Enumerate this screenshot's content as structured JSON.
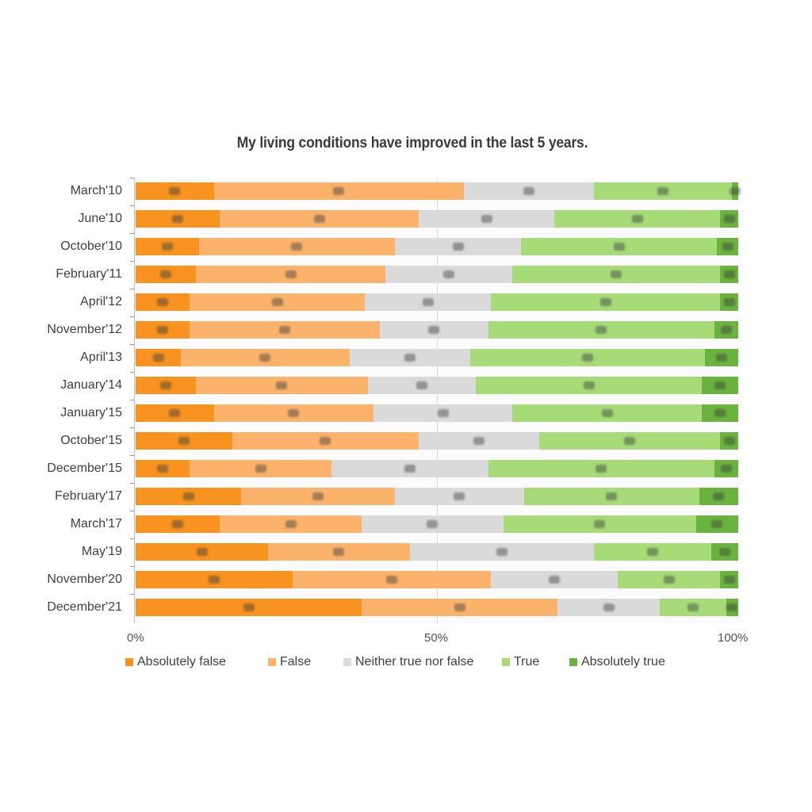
{
  "chart_data": {
    "type": "bar",
    "orientation": "horizontal",
    "stacked": "percent",
    "title": "My living conditions have improved in the last 5 years.",
    "xlabel": "",
    "ylabel": "",
    "xlim": [
      0,
      100
    ],
    "x_ticks": [
      "0%",
      "50%",
      "100%"
    ],
    "grid": "vertical gridline at 50%",
    "legend_position": "bottom",
    "categories": [
      "March'10",
      "June'10",
      "October'10",
      "February'11",
      "April'12",
      "November'12",
      "April'13",
      "January'14",
      "January'15",
      "October'15",
      "December'15",
      "February'17",
      "March'17",
      "May'19",
      "November'20",
      "December'21"
    ],
    "series": [
      {
        "name": "Absolutely false",
        "color": "#F7931E",
        "values": [
          13,
          14,
          10.5,
          10,
          9,
          9,
          7.5,
          10,
          13,
          16,
          9,
          17.5,
          14,
          22,
          26,
          37.5
        ]
      },
      {
        "name": "False",
        "color": "#FBB36B",
        "values": [
          41.5,
          33,
          32.5,
          31.5,
          29,
          31.5,
          28,
          28.5,
          26.5,
          31,
          23.5,
          25.5,
          23.5,
          23.5,
          33,
          32.5
        ]
      },
      {
        "name": "Neither true nor false",
        "color": "#DADADA",
        "values": [
          21.5,
          22.5,
          21,
          21,
          21,
          18,
          20,
          18,
          23,
          20,
          26,
          21.5,
          23.5,
          30.5,
          21,
          17
        ]
      },
      {
        "name": "True",
        "color": "#A6DB78",
        "values": [
          23,
          27.5,
          32.5,
          34.5,
          38,
          37.5,
          39,
          37.5,
          31.5,
          30,
          37.5,
          29,
          32,
          19.5,
          17,
          11
        ]
      },
      {
        "name": "Absolutely true",
        "color": "#6AB33E",
        "values": [
          1,
          3,
          3.5,
          3,
          3,
          4,
          5.5,
          6,
          6,
          3,
          4,
          6.5,
          7,
          4.5,
          3,
          2
        ]
      }
    ],
    "data_labels": "present on each segment but illegible (blurred)"
  },
  "legend": {
    "items": [
      {
        "label": "Absolutely false",
        "color": "#F7931E"
      },
      {
        "label": "False",
        "color": "#FBB36B"
      },
      {
        "label": "Neither true nor false",
        "color": "#DADADA"
      },
      {
        "label": "True",
        "color": "#A6DB78"
      },
      {
        "label": "Absolutely true",
        "color": "#6AB33E"
      }
    ]
  }
}
